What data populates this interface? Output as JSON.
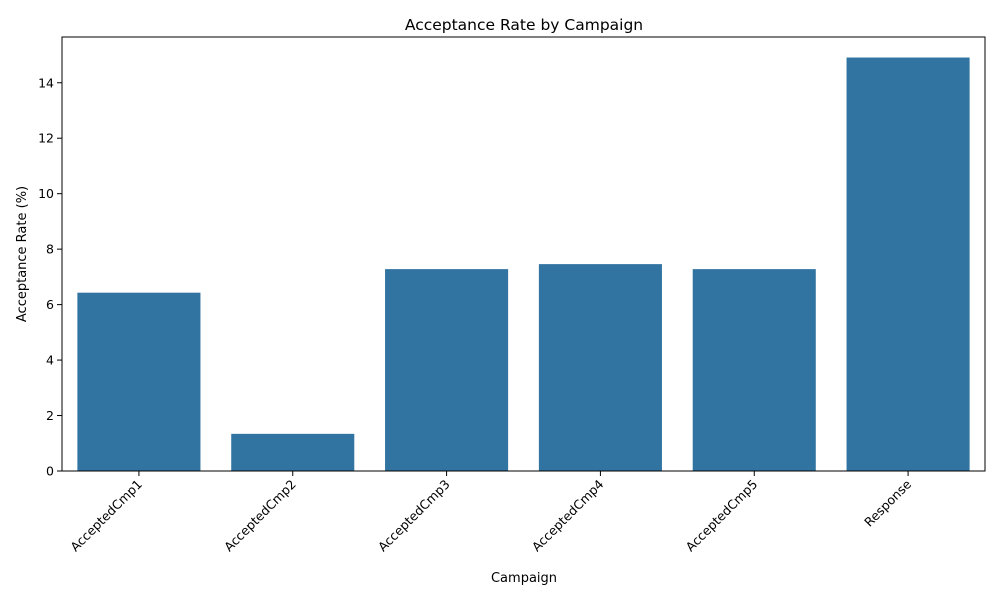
{
  "chart_data": {
    "type": "bar",
    "title": "Acceptance Rate by Campaign",
    "xlabel": "Campaign",
    "ylabel": "Acceptance Rate (%)",
    "categories": [
      "AcceptedCmp1",
      "AcceptedCmp2",
      "AcceptedCmp3",
      "AcceptedCmp4",
      "AcceptedCmp5",
      "Response"
    ],
    "values": [
      6.43,
      1.34,
      7.28,
      7.46,
      7.28,
      14.91
    ],
    "ylim": [
      0,
      15.65
    ],
    "yticks": [
      0,
      2,
      4,
      6,
      8,
      10,
      12,
      14
    ],
    "bar_color": "#3274a1",
    "grid": false,
    "legend": "none"
  }
}
